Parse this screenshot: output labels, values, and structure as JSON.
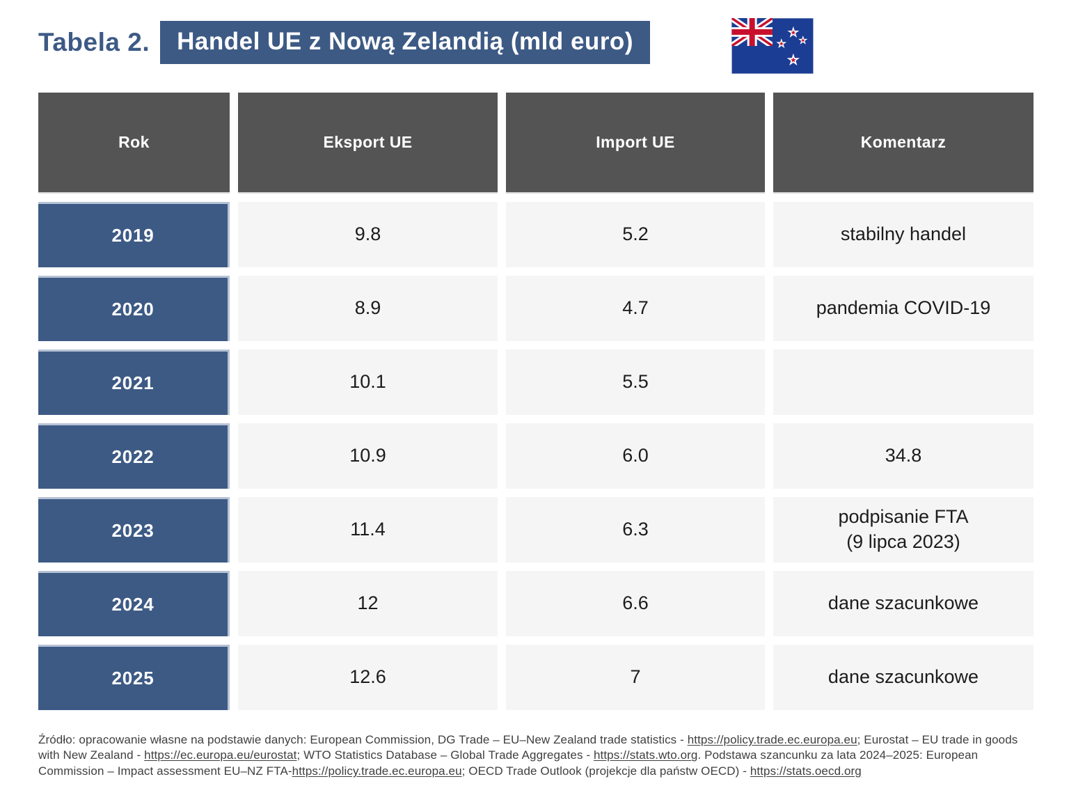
{
  "title": {
    "prefix": "Tabela 2.",
    "highlight": "Handel UE z Nową Zelandią (mld euro)"
  },
  "icons": {
    "flag": "new-zealand-flag"
  },
  "colors": {
    "accent_navy": "#3d5a85",
    "header_gray": "#545454",
    "cell_light": "#f5f5f5",
    "flag_blue": "#1c3d94",
    "flag_red": "#c8102e"
  },
  "table": {
    "headers": [
      "Rok",
      "Eksport UE",
      "Import UE",
      "Komentarz"
    ],
    "rows": [
      {
        "year": "2019",
        "eksport": "9.8",
        "import": "5.2",
        "komentarz": "stabilny handel"
      },
      {
        "year": "2020",
        "eksport": "8.9",
        "import": "4.7",
        "komentarz": "pandemia COVID-19"
      },
      {
        "year": "2021",
        "eksport": "10.1",
        "import": "5.5",
        "komentarz": ""
      },
      {
        "year": "2022",
        "eksport": "10.9",
        "import": "6.0",
        "komentarz": "34.8"
      },
      {
        "year": "2023",
        "eksport": "11.4",
        "import": "6.3",
        "komentarz": "podpisanie FTA\n(9 lipca 2023)"
      },
      {
        "year": "2024",
        "eksport": "12",
        "import": "6.6",
        "komentarz": "dane szacunkowe"
      },
      {
        "year": "2025",
        "eksport": "12.6",
        "import": "7",
        "komentarz": "dane szacunkowe"
      }
    ]
  },
  "source": {
    "segments": [
      {
        "text": "Źródło: opracowanie własne na podstawie danych: European Commission, DG Trade – EU–New Zealand trade statistics - ",
        "link": false
      },
      {
        "text": "https://policy.trade.ec.europa.eu",
        "link": true
      },
      {
        "text": "; Eurostat – EU trade in goods with New Zealand - ",
        "link": false
      },
      {
        "text": "https://ec.europa.eu/eurostat",
        "link": true
      },
      {
        "text": "; WTO Statistics Database – Global Trade Aggregates - ",
        "link": false
      },
      {
        "text": "https://stats.wto.org",
        "link": true
      },
      {
        "text": ". Podstawa szancunku za lata 2024–2025: European Commission – Impact assessment EU–NZ FTA-",
        "link": false
      },
      {
        "text": "https://policy.trade.ec.europa.eu",
        "link": true
      },
      {
        "text": "; OECD Trade Outlook (projekcje dla państw OECD) - ",
        "link": false
      },
      {
        "text": "https://stats.oecd.org",
        "link": true
      }
    ]
  }
}
